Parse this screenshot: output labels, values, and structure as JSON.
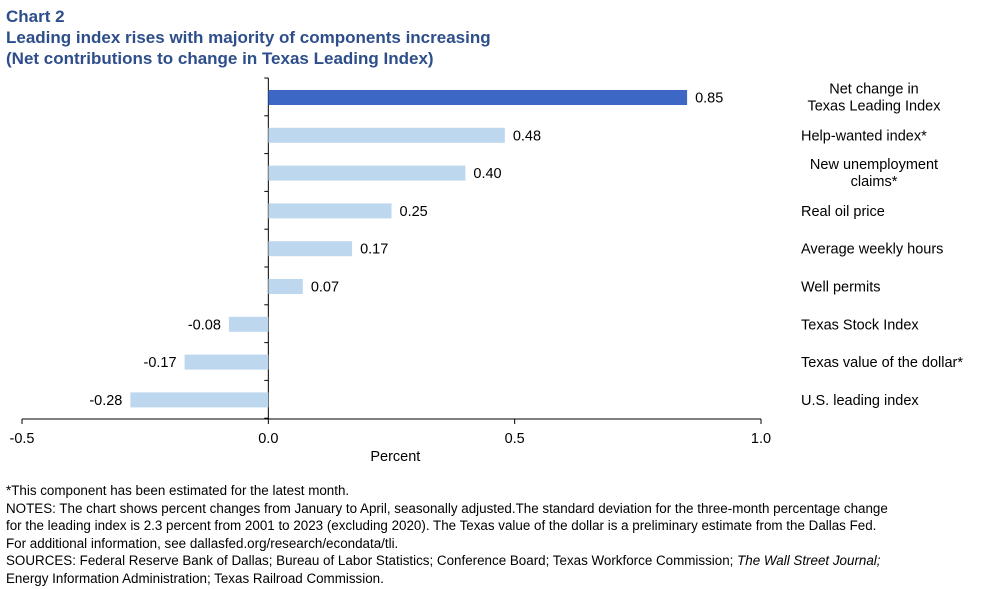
{
  "header": {
    "chart_number": "Chart 2",
    "title": "Leading index rises with majority of components increasing",
    "subtitle": "(Net contributions to change in Texas Leading Index)"
  },
  "chart_data": {
    "type": "bar",
    "orientation": "horizontal",
    "categories": [
      [
        "Net change in",
        "Texas Leading Index"
      ],
      [
        "Help-wanted index*"
      ],
      [
        "New unemployment",
        "claims*"
      ],
      [
        "Real oil price"
      ],
      [
        "Average weekly hours"
      ],
      [
        "Well permits"
      ],
      [
        "Texas Stock Index"
      ],
      [
        "Texas value of the dollar*"
      ],
      [
        "U.S. leading index"
      ]
    ],
    "values": [
      0.85,
      0.48,
      0.4,
      0.25,
      0.17,
      0.07,
      -0.08,
      -0.17,
      -0.28
    ],
    "value_labels": [
      "0.85",
      "0.48",
      "0.40",
      "0.25",
      "0.17",
      "0.07",
      "-0.08",
      "-0.17",
      "-0.28"
    ],
    "highlight_index": 0,
    "xlabel": "Percent",
    "xlim": [
      -0.5,
      1.0
    ],
    "xticks": [
      -0.5,
      0.0,
      0.5,
      1.0
    ],
    "xtick_labels": [
      "-0.5",
      "0.0",
      "0.5",
      "1.0"
    ],
    "colors": {
      "highlight": "#3c67c4",
      "bar": "#bdd7ee",
      "axis": "#000000"
    }
  },
  "footnotes": {
    "estimated": "*This component has been estimated for the latest month.",
    "notes_line1": "NOTES: The chart shows percent changes from January to April, seasonally adjusted.The standard deviation for the three-month percentage change",
    "notes_line2": "for the leading index is 2.3 percent from 2001 to 2023 (excluding 2020). The Texas value of the dollar is a preliminary estimate from the Dallas Fed.",
    "notes_line3": "For additional information, see dallasfed.org/research/econdata/tli.",
    "sources_prefix": "SOURCES: Federal Reserve Bank of Dallas; Bureau of Labor Statistics; Conference Board; Texas Workforce Commission; ",
    "sources_italic": "The Wall Street Journal;",
    "sources_line2": "Energy Information Administration; Texas Railroad Commission."
  }
}
